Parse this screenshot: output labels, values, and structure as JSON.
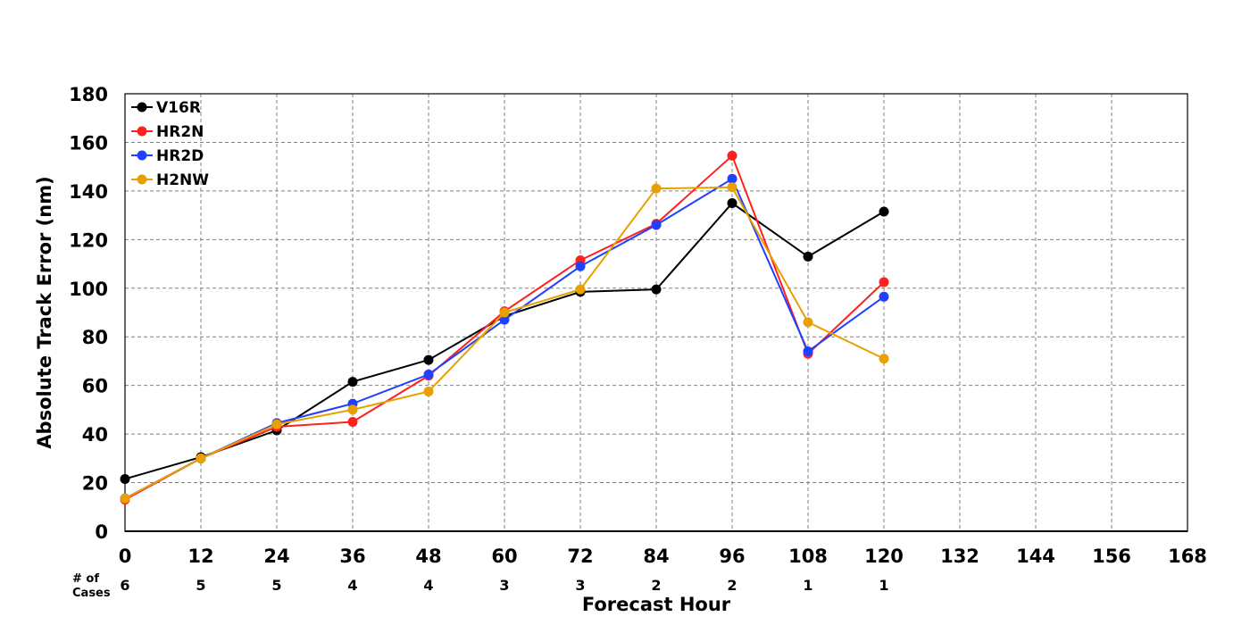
{
  "chart_data": {
    "type": "line",
    "title": "",
    "xlabel": "Forecast Hour",
    "ylabel": "Absolute Track Error (nm)",
    "xlim": [
      0,
      168
    ],
    "ylim": [
      0,
      180
    ],
    "x_ticks": [
      0,
      12,
      24,
      36,
      48,
      60,
      72,
      84,
      96,
      108,
      120,
      132,
      144,
      156,
      168
    ],
    "y_ticks": [
      0,
      20,
      40,
      60,
      80,
      100,
      120,
      140,
      160,
      180
    ],
    "grid": true,
    "legend_position": "top-left",
    "cases_label": "# of Cases",
    "cases": [
      {
        "x": 0,
        "count": "6"
      },
      {
        "x": 12,
        "count": "5"
      },
      {
        "x": 24,
        "count": "5"
      },
      {
        "x": 36,
        "count": "4"
      },
      {
        "x": 48,
        "count": "4"
      },
      {
        "x": 60,
        "count": "3"
      },
      {
        "x": 72,
        "count": "3"
      },
      {
        "x": 84,
        "count": "2"
      },
      {
        "x": 96,
        "count": "2"
      },
      {
        "x": 108,
        "count": "1"
      },
      {
        "x": 120,
        "count": "1"
      }
    ],
    "x": [
      0,
      12,
      24,
      36,
      48,
      60,
      72,
      84,
      96,
      108,
      120
    ],
    "series": [
      {
        "name": "V16R",
        "color": "#000000",
        "values": [
          21.5,
          30.5,
          41.5,
          61.5,
          70.5,
          88.5,
          98.5,
          99.5,
          135,
          113,
          131.5
        ]
      },
      {
        "name": "HR2N",
        "color": "#ff2020",
        "values": [
          13,
          30,
          43,
          45,
          64,
          90.5,
          111.5,
          126.5,
          154.5,
          73,
          102.5
        ]
      },
      {
        "name": "HR2D",
        "color": "#2040ff",
        "values": [
          13.5,
          30,
          44.5,
          52.5,
          64.5,
          87,
          109,
          126,
          145,
          74,
          96.5
        ]
      },
      {
        "name": "H2NW",
        "color": "#e8a000",
        "values": [
          13.5,
          30,
          44,
          50,
          57.5,
          90,
          99.5,
          141,
          141.5,
          86,
          71
        ]
      }
    ]
  }
}
